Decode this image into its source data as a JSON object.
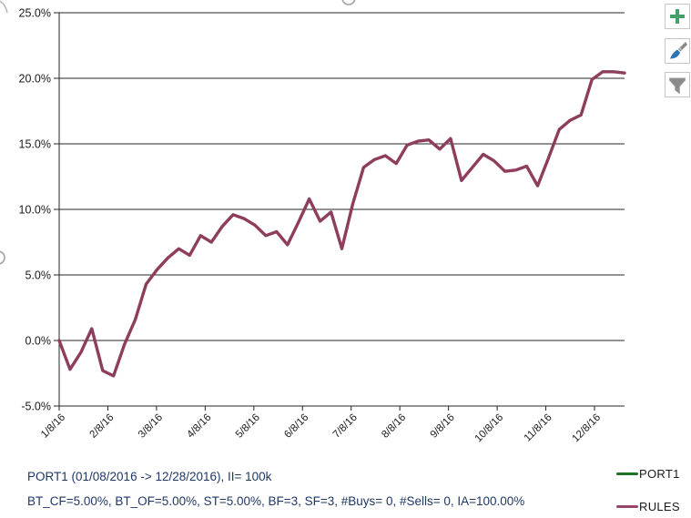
{
  "legend": {
    "items": [
      {
        "label": "PORT1",
        "color": "#1e7125"
      },
      {
        "label": "RULES",
        "color": "#96456b"
      }
    ]
  },
  "footer": {
    "line1": "PORT1 (01/08/2016 -> 12/28/2016), II= 100k",
    "line2": "BT_CF=5.00%, BT_OF=5.00%, ST=5.00%, BF=3, SF=3, #Buys= 0, #Sells= 0, IA=100.00%",
    "color": "#1f3864"
  },
  "toolbar": {
    "buttons": [
      {
        "icon": "plus-icon",
        "color": "#44a06a"
      },
      {
        "icon": "paintbrush-icon",
        "color": "#2e75b6"
      },
      {
        "icon": "funnel-icon",
        "color": "#8a8a8a"
      }
    ]
  },
  "chart_data": {
    "type": "line",
    "title": "",
    "xlabel": "",
    "ylabel": "",
    "ylim": [
      -5,
      25
    ],
    "grid": "horizontal",
    "legend_position": "bottom-right",
    "y_tick_values": [
      25,
      20,
      15,
      10,
      5,
      0,
      -5
    ],
    "y_tick_labels": [
      "25.0%",
      "20.0%",
      "15.0%",
      "10.0%",
      "5.0%",
      "0.0%",
      "-5.0%"
    ],
    "x_tick_labels": [
      "1/8/16",
      "2/8/16",
      "3/8/16",
      "4/8/16",
      "5/8/16",
      "6/8/16",
      "7/8/16",
      "8/8/16",
      "9/8/16",
      "10/8/16",
      "11/8/16",
      "12/8/16"
    ],
    "series": [
      {
        "name": "PORT1",
        "color": "#1e7125",
        "visible_in_plot": false,
        "values": []
      },
      {
        "name": "RULES",
        "color": "#8e3d5c",
        "visible_in_plot": true,
        "values": [
          0.0,
          -2.2,
          -0.9,
          0.9,
          -2.3,
          -2.7,
          -0.3,
          1.6,
          4.3,
          5.4,
          6.3,
          7.0,
          6.5,
          8.0,
          7.5,
          8.7,
          9.6,
          9.3,
          8.8,
          8.0,
          8.3,
          7.3,
          9.0,
          10.8,
          9.1,
          9.8,
          7.0,
          10.4,
          13.2,
          13.8,
          14.1,
          13.5,
          14.9,
          15.2,
          15.3,
          14.6,
          15.4,
          12.2,
          13.2,
          14.2,
          13.7,
          12.9,
          13.0,
          13.3,
          11.8,
          13.9,
          16.1,
          16.8,
          17.2,
          19.9,
          20.5,
          20.5,
          20.4
        ]
      }
    ]
  }
}
